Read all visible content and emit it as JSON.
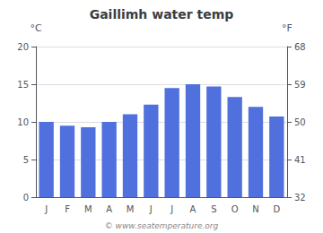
{
  "chart_data": {
    "type": "bar",
    "title": "Gaillimh water temp",
    "categories": [
      "J",
      "F",
      "M",
      "A",
      "M",
      "J",
      "J",
      "A",
      "S",
      "O",
      "N",
      "D"
    ],
    "values": [
      10.0,
      9.5,
      9.3,
      10.0,
      11.0,
      12.3,
      14.5,
      15.0,
      14.7,
      13.3,
      12.0,
      10.7
    ],
    "ylabel": "°C",
    "ylim": [
      0,
      20
    ],
    "yticks": [
      0,
      5,
      10,
      15,
      20
    ],
    "y2label": "°F",
    "y2lim": [
      32,
      68
    ],
    "y2ticks": [
      32,
      41,
      50,
      59,
      68
    ],
    "annotation": "© www.seatemperature.org",
    "grid": true
  }
}
